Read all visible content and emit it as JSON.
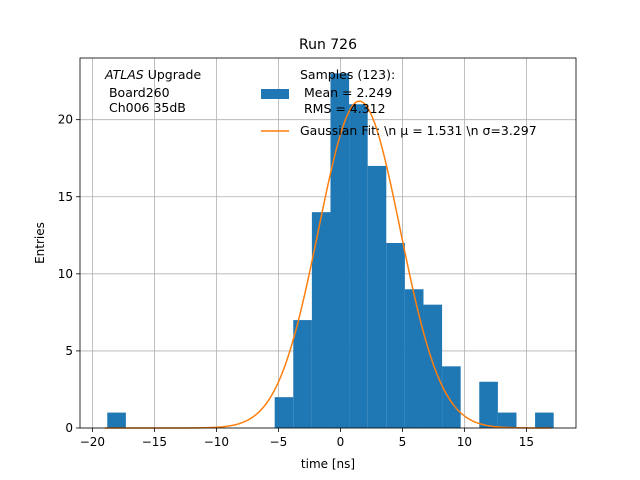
{
  "chart_data": {
    "type": "bar",
    "title": "Run 726",
    "xlabel": "time [ns]",
    "ylabel": "Entries",
    "xlim": [
      -21,
      19
    ],
    "ylim": [
      0,
      24
    ],
    "grid": true,
    "xticks": [
      -20,
      -15,
      -10,
      -5,
      0,
      5,
      10,
      15
    ],
    "yticks": [
      0,
      5,
      10,
      15,
      20
    ],
    "bin_edges": [
      -18.8,
      -17.3,
      -15.8,
      -14.3,
      -12.8,
      -11.3,
      -9.8,
      -8.3,
      -6.8,
      -5.3,
      -3.8,
      -2.3,
      -0.8,
      0.7,
      2.2,
      3.7,
      5.2,
      6.7,
      8.2,
      9.7,
      11.2,
      12.7,
      14.2,
      15.7,
      17.2
    ],
    "counts": [
      1,
      0,
      0,
      0,
      0,
      0,
      0,
      0,
      0,
      2,
      7,
      14,
      23,
      21,
      17,
      12,
      9,
      8,
      4,
      0,
      3,
      1,
      0,
      1
    ],
    "bar_color": "#1f77b4",
    "fit": {
      "name": "Gaussian Fit",
      "mu": 1.531,
      "sigma": 3.297,
      "amplitude": 21.2,
      "color": "#ff7f0e"
    },
    "annotation": {
      "italic": "ATLAS",
      "rest": " Upgrade",
      "line2": " Board260",
      "line3": " Ch006 35dB"
    },
    "legend": {
      "placement": "top-right",
      "hist_lines": [
        "Samples (123):",
        " Mean = 2.249",
        " RMS = 4.312"
      ],
      "fit_label": "Gaussian Fit: \\n μ = 1.531 \\n σ=3.297"
    }
  }
}
